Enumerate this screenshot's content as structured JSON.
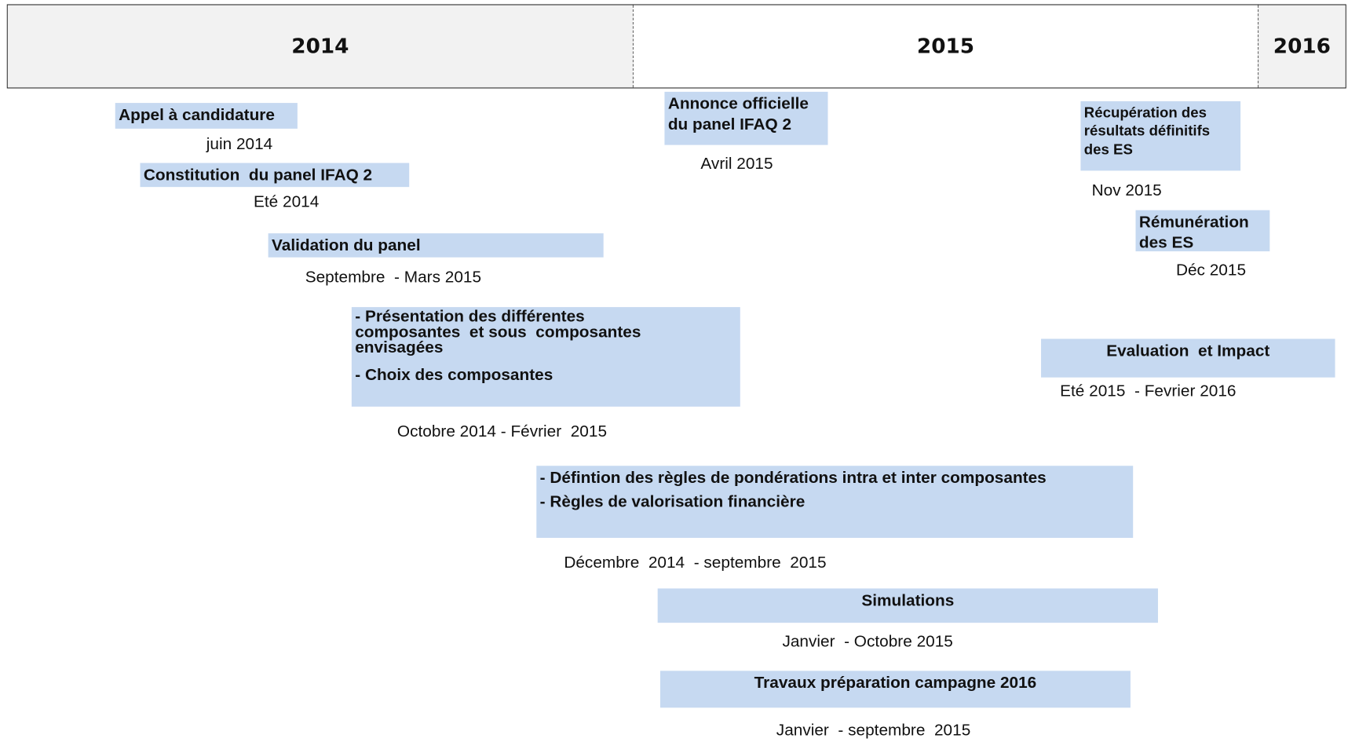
{
  "header": {
    "years": [
      "2014",
      "2015",
      "2016"
    ]
  },
  "items": [
    {
      "lines": [
        "Appel à candidature"
      ],
      "date": "juin 2014"
    },
    {
      "lines": [
        "Constitution  du panel IFAQ 2"
      ],
      "date": "Eté 2014"
    },
    {
      "lines": [
        "Validation du panel"
      ],
      "date": "Septembre  - Mars 2015"
    },
    {
      "lines": [
        "- Présentation des différentes composantes  et sous  composantes envisagées",
        "- Choix des composantes"
      ],
      "date": "Octobre 2014 - Février  2015"
    },
    {
      "lines": [
        "- Défintion des règles de pondérations intra et inter composantes",
        "- Règles de valorisation financière"
      ],
      "date": "Décembre  2014  - septembre  2015"
    },
    {
      "lines": [
        "Simulations"
      ],
      "date": "Janvier  - Octobre 2015"
    },
    {
      "lines": [
        "Travaux préparation campagne 2016"
      ],
      "date": "Janvier  - septembre  2015"
    },
    {
      "lines": [
        "Annonce officielle",
        "du panel IFAQ 2"
      ],
      "date": "Avril 2015"
    },
    {
      "lines": [
        "Récupération des",
        "résultats définitifs",
        "des ES"
      ],
      "date": "Nov 2015"
    },
    {
      "lines": [
        "Rémunération",
        "des ES"
      ],
      "date": "Déc 2015"
    },
    {
      "lines": [
        "Evaluation  et Impact"
      ],
      "date": "Eté 2015  - Fevrier 2016"
    }
  ]
}
